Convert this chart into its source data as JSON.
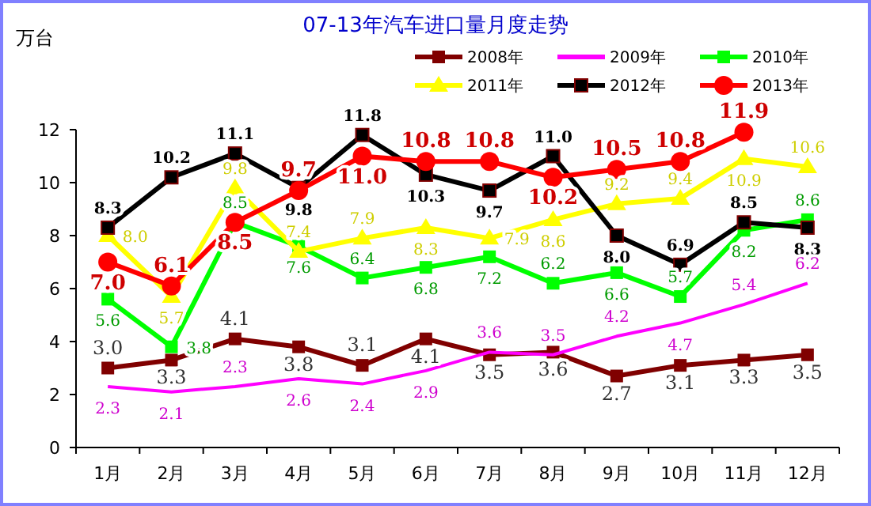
{
  "chart_data": {
    "type": "line",
    "title": "07-13年汽车进口量月度走势",
    "ylabel": "万台",
    "categories": [
      "1月",
      "2月",
      "3月",
      "4月",
      "5月",
      "6月",
      "7月",
      "8月",
      "9月",
      "10月",
      "11月",
      "12月"
    ],
    "ylim": [
      0,
      12
    ],
    "yticks": [
      0,
      2,
      4,
      6,
      8,
      10,
      12
    ],
    "grid": false,
    "legend": "top right",
    "series": [
      {
        "name": "2008年",
        "color": "#800000",
        "marker": "square",
        "values": [
          3.0,
          3.3,
          4.1,
          3.8,
          3.1,
          4.1,
          3.5,
          3.6,
          2.7,
          3.1,
          3.3,
          3.5
        ],
        "value_labels": [
          "3.0",
          "3.3",
          "4.1",
          "3.8",
          "3.1",
          "4.1",
          "3.5",
          "3.6",
          "2.7",
          "3.1",
          "3.3",
          "3.5"
        ]
      },
      {
        "name": "2009年",
        "color": "#ff00ff",
        "marker": "none",
        "values": [
          2.3,
          2.1,
          2.3,
          2.6,
          2.4,
          2.9,
          3.6,
          3.5,
          4.2,
          4.7,
          5.4,
          6.2
        ],
        "value_labels": [
          "2.3",
          "2.1",
          "2.3",
          "2.6",
          "2.4",
          "2.9",
          "3.6",
          "3.5",
          "4.2",
          "4.7",
          "5.4",
          "6.2"
        ]
      },
      {
        "name": "2010年",
        "color": "#00ff00",
        "marker": "square",
        "values": [
          5.6,
          3.8,
          8.5,
          7.6,
          6.4,
          6.8,
          7.2,
          6.2,
          6.6,
          5.7,
          8.2,
          8.6
        ],
        "value_labels": [
          "5.6",
          "3.8",
          "8.5",
          "7.6",
          "6.4",
          "6.8",
          "7.2",
          "6.2",
          "6.6",
          "5.7",
          "8.2",
          "8.6"
        ]
      },
      {
        "name": "2011年",
        "color": "#ffff00",
        "marker": "triangle",
        "values": [
          8.0,
          5.7,
          9.8,
          7.4,
          7.9,
          8.3,
          7.9,
          8.6,
          9.2,
          9.4,
          10.9,
          10.6
        ],
        "value_labels": [
          "8.0",
          "5.7",
          "9.8",
          "7.4",
          "7.9",
          "8.3",
          "7.9",
          "8.6",
          "9.2",
          "9.4",
          "10.9",
          "10.6"
        ]
      },
      {
        "name": "2012年",
        "color": "#000000",
        "marker": "square",
        "values": [
          8.3,
          10.2,
          11.1,
          9.8,
          11.8,
          10.3,
          9.7,
          11.0,
          8.0,
          6.9,
          8.5,
          8.3
        ],
        "value_labels": [
          "8.3",
          "10.2",
          "11.1",
          "9.8",
          "11.8",
          "10.3",
          "9.7",
          "11.0",
          "8.0",
          "6.9",
          "8.5",
          "8.3"
        ]
      },
      {
        "name": "2013年",
        "color": "#ff0000",
        "marker": "circle",
        "values": [
          7.0,
          6.1,
          8.5,
          9.7,
          11.0,
          10.8,
          10.8,
          10.2,
          10.5,
          10.8,
          11.9,
          null
        ],
        "value_labels": [
          "7.0",
          "6.1",
          "8.5",
          "9.7",
          "11.0",
          "10.8",
          "10.8",
          "10.2",
          "10.5",
          "10.8",
          "11.9",
          null
        ]
      }
    ]
  }
}
